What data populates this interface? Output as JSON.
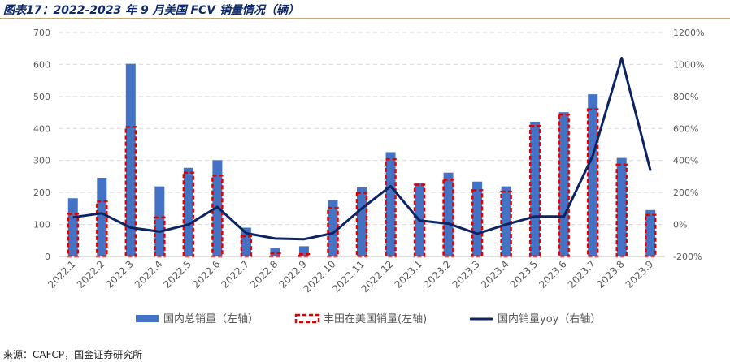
{
  "header": {
    "title": "图表17：2022-2023 年 9 月美国 FCV 销量情况（辆）"
  },
  "footer": {
    "source": "来源：CAFCP，国金证券研究所"
  },
  "colors": {
    "accent": "#0f2a6b",
    "total_bar": "#4472c4",
    "toyota_dash": "#e00000",
    "yoy_line": "#0d2462",
    "grid": "#d9d9d9",
    "axis_text": "#595959"
  },
  "chart_data": {
    "type": "bar",
    "title": "",
    "categories": [
      "2022.1",
      "2022.2",
      "2022.3",
      "2022.4",
      "2022.5",
      "2022.6",
      "2022.7",
      "2022.8",
      "2022.9",
      "2022.10",
      "2022.11",
      "2022.12",
      "2023.1",
      "2023.2",
      "2023.3",
      "2023.4",
      "2023.5",
      "2023.6",
      "2023.7",
      "2023.8",
      "2023.9"
    ],
    "series": [
      {
        "name": "国内总销量（左轴）",
        "type": "bar",
        "axis": "left",
        "values": [
          182,
          246,
          602,
          219,
          277,
          301,
          90,
          26,
          32,
          176,
          216,
          326,
          230,
          262,
          234,
          219,
          421,
          451,
          507,
          308,
          145
        ]
      },
      {
        "name": "丰田在美国销量(左轴)",
        "type": "bar-dashed",
        "axis": "left",
        "values": [
          133,
          172,
          405,
          122,
          262,
          253,
          63,
          10,
          7,
          152,
          198,
          304,
          224,
          240,
          207,
          203,
          408,
          443,
          460,
          287,
          130
        ]
      },
      {
        "name": "国内销量yoy（右轴）",
        "type": "line",
        "axis": "right",
        "values": [
          45,
          70,
          -20,
          -45,
          0,
          110,
          -55,
          -88,
          -92,
          -55,
          100,
          240,
          25,
          5,
          -58,
          0,
          50,
          50,
          430,
          1040,
          335
        ]
      }
    ],
    "left_axis": {
      "min": 0,
      "max": 700,
      "ticks": [
        0,
        100,
        200,
        300,
        400,
        500,
        600,
        700
      ]
    },
    "right_axis": {
      "min": -200,
      "max": 1200,
      "ticks": [
        "-200%",
        "0%",
        "200%",
        "400%",
        "600%",
        "800%",
        "1000%",
        "1200%"
      ]
    },
    "grid": true,
    "legend_position": "bottom"
  }
}
